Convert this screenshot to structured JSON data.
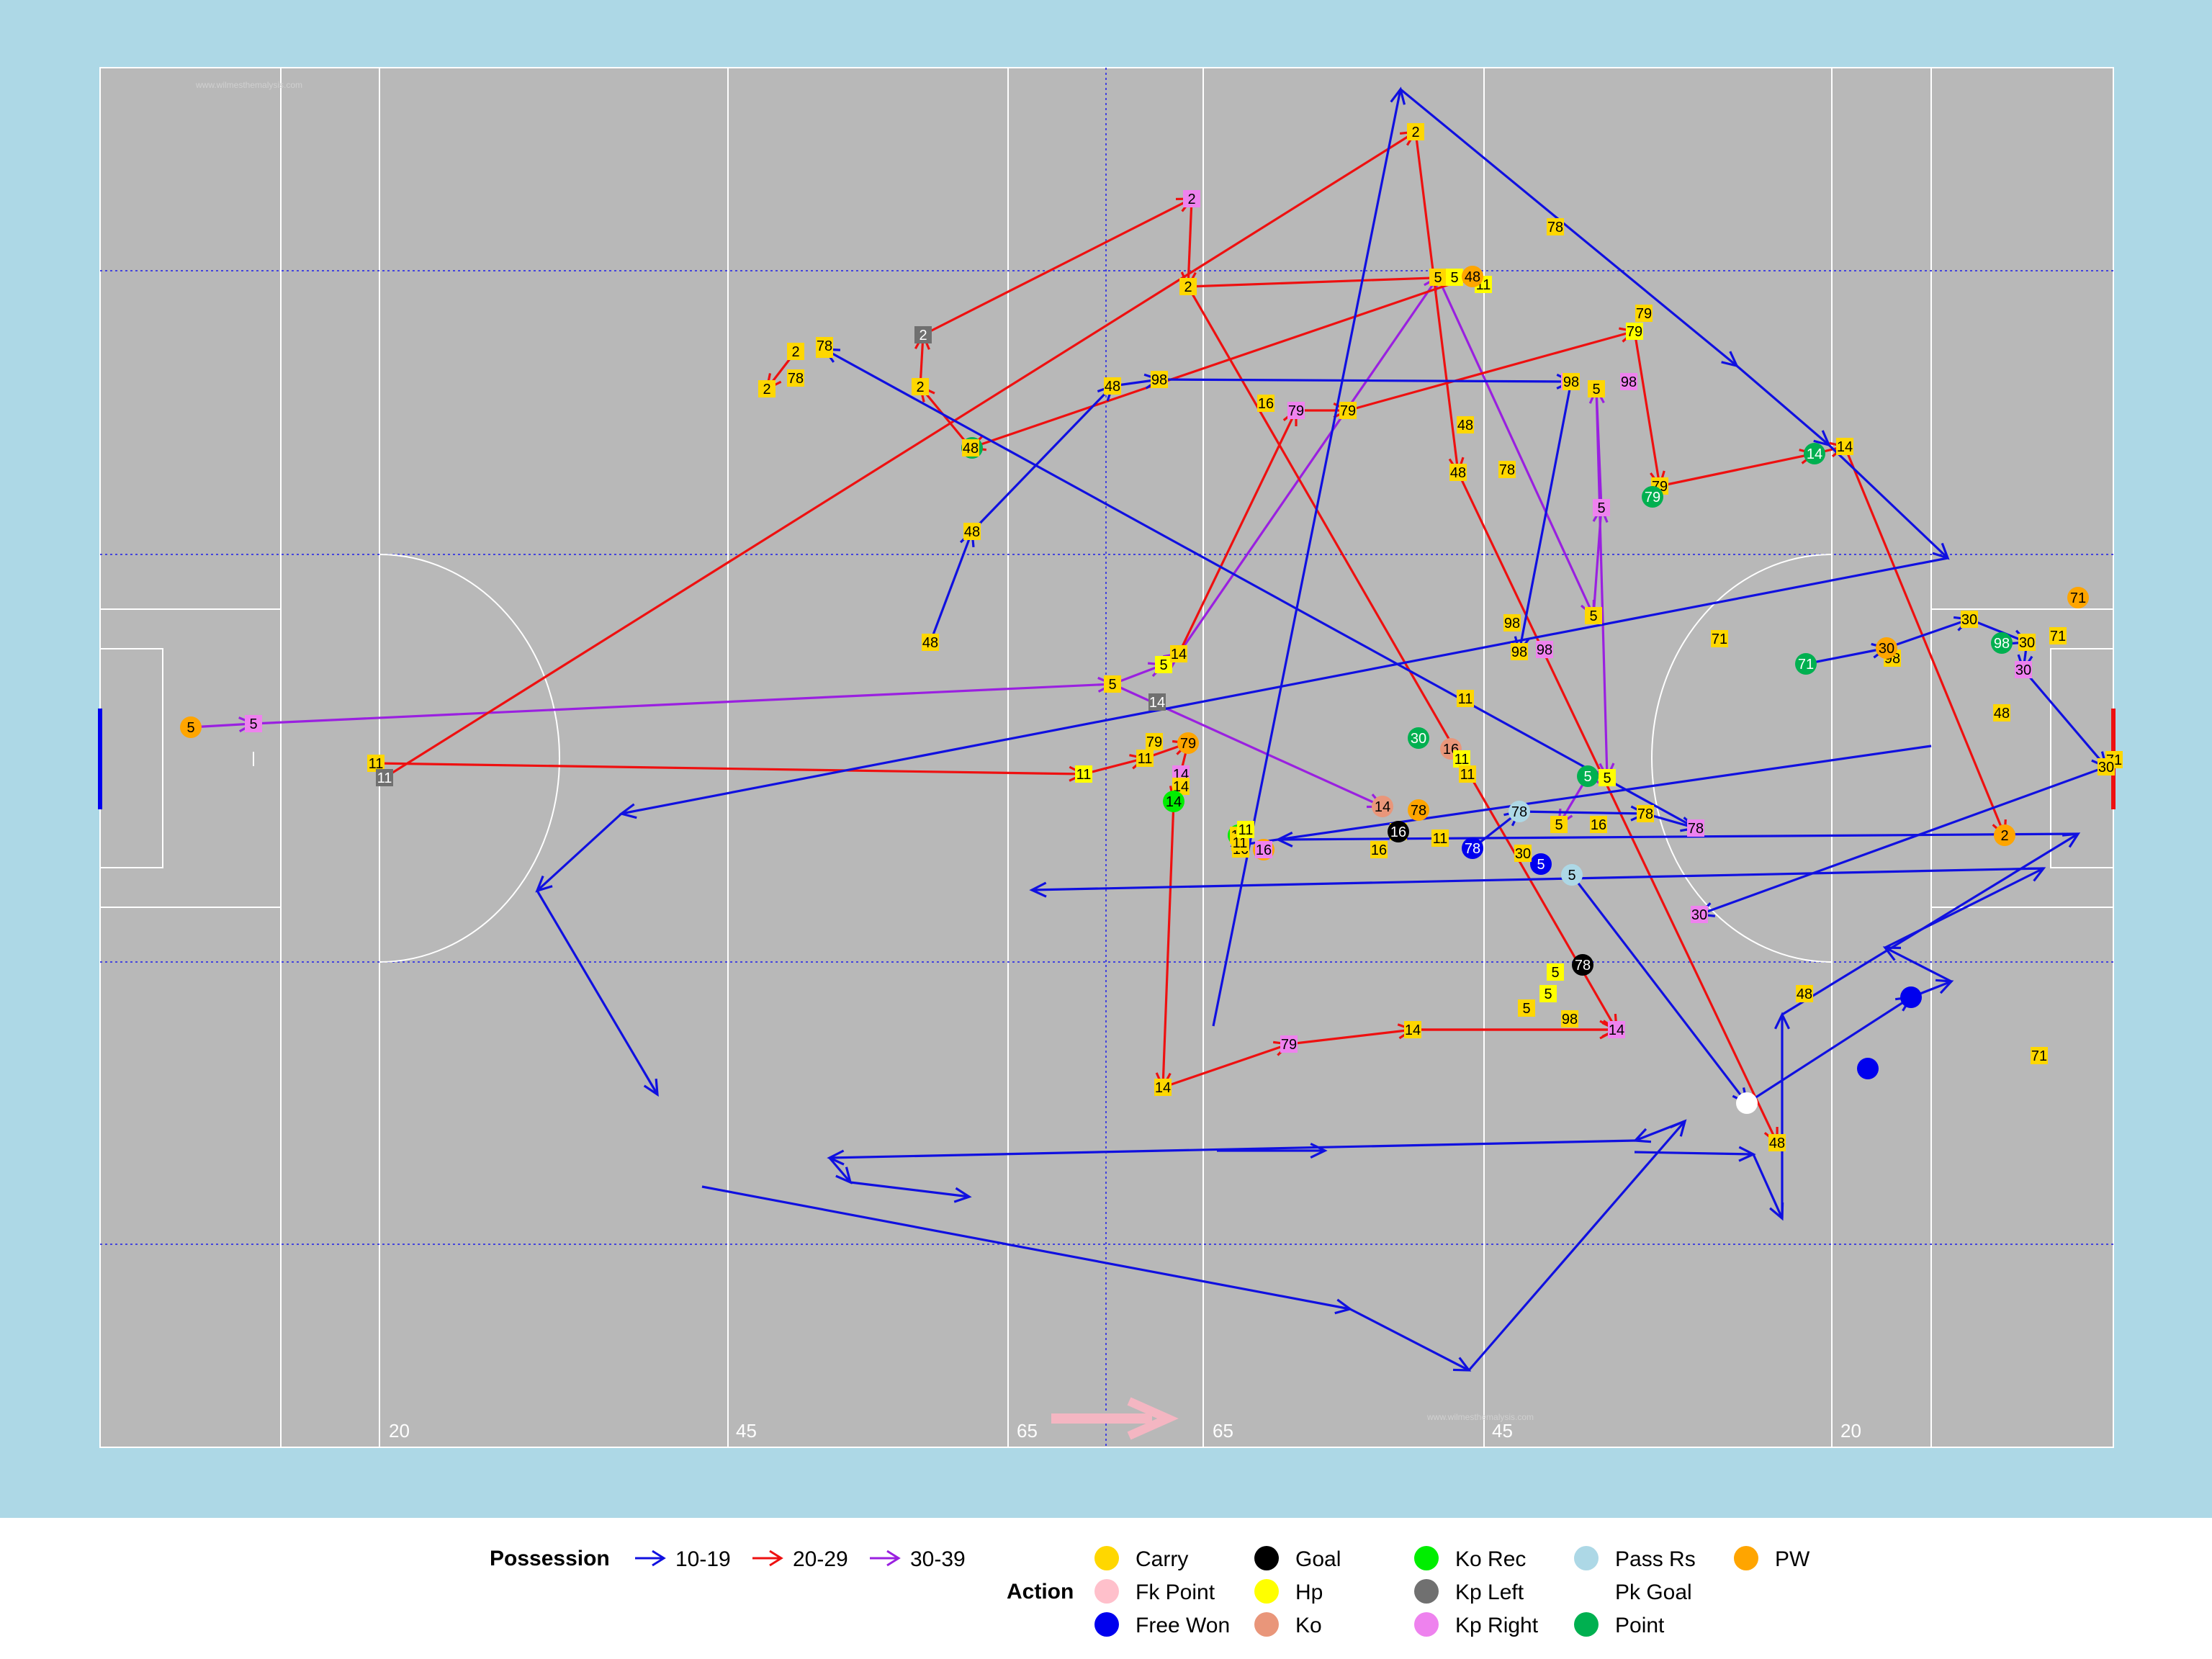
{
  "watermark": "www.wilmesthemalysis.com",
  "distance_labels": [
    "20",
    "45",
    "65",
    "65",
    "45",
    "20"
  ],
  "colors": {
    "panel": "#add8e6",
    "pitch": "#b8b8b8",
    "pitch_lines": "#ffffff",
    "guide_lines": "#4444dd",
    "direction_arrow": "#f4b6c2",
    "possession": {
      "10-19": "#1010e0",
      "20-29": "#ee1010",
      "30-39": "#9a20e0"
    }
  },
  "legend": {
    "possession_title": "Possession",
    "possession": [
      {
        "label": "10-19",
        "key": "10-19"
      },
      {
        "label": "20-29",
        "key": "20-29"
      },
      {
        "label": "30-39",
        "key": "30-39"
      }
    ],
    "action_title": "Action",
    "actions": [
      {
        "label": "Carry",
        "color": "#ffd700"
      },
      {
        "label": "Fk Point",
        "color": "#ffc0cb"
      },
      {
        "label": "Free Won",
        "color": "#0000ee"
      },
      {
        "label": "Goal",
        "color": "#000000"
      },
      {
        "label": "Hp",
        "color": "#ffff00"
      },
      {
        "label": "Ko",
        "color": "#e9967a"
      },
      {
        "label": "Ko Rec",
        "color": "#00ee00"
      },
      {
        "label": "Kp Left",
        "color": "#707070"
      },
      {
        "label": "Kp Right",
        "color": "#ee82ee"
      },
      {
        "label": "Pass Rs",
        "color": "#add8e6"
      },
      {
        "label": "Pk Goal",
        "color": "#ffffff"
      },
      {
        "label": "Point",
        "color": "#00b050"
      },
      {
        "label": "PW",
        "color": "#ffa500"
      }
    ]
  },
  "action_colors": {
    "carry": "#ffd700",
    "fk_point": "#ffc0cb",
    "free_won": "#0000ee",
    "goal": "#000000",
    "hp": "#ffff00",
    "ko": "#e9967a",
    "ko_rec": "#00ee00",
    "kp_left": "#707070",
    "kp_right": "#ee82ee",
    "pass_rs": "#add8e6",
    "pk_goal": "#ffffff",
    "point": "#00b050",
    "pw": "#ffa500"
  },
  "events": [
    {
      "p": "5",
      "a": "pw"
    },
    {
      "p": "5",
      "a": "kp_right"
    },
    {
      "p": "5",
      "a": "carry"
    },
    {
      "p": "5",
      "a": "hp"
    },
    {
      "p": "5",
      "a": "hp"
    },
    {
      "p": "5",
      "a": "kp_right"
    },
    {
      "p": "5",
      "a": "carry"
    },
    {
      "p": "5",
      "a": "hp"
    },
    {
      "p": "5",
      "a": "carry"
    },
    {
      "p": "5",
      "a": "kp_right"
    },
    {
      "p": "5",
      "a": "carry"
    },
    {
      "p": "5",
      "a": "hp"
    },
    {
      "p": "5",
      "a": "point"
    },
    {
      "p": "5",
      "a": "carry"
    },
    {
      "p": "5",
      "a": "hp"
    },
    {
      "p": "5",
      "a": "carry"
    },
    {
      "p": "5",
      "a": "hp"
    },
    {
      "p": "5",
      "a": "free_won"
    },
    {
      "p": "16",
      "a": "ko"
    },
    {
      "p": "14",
      "a": "ko"
    },
    {
      "p": "16",
      "a": "carry"
    },
    {
      "p": "11",
      "a": "pw"
    },
    {
      "p": "16",
      "a": "ko_rec"
    },
    {
      "p": "16",
      "a": "carry"
    },
    {
      "p": "16",
      "a": "hp"
    },
    {
      "p": "16",
      "a": "kp_right"
    },
    {
      "p": "16",
      "a": "carry"
    },
    {
      "p": "16",
      "a": "carry"
    },
    {
      "p": "16",
      "a": "hp"
    },
    {
      "p": "16",
      "a": "carry"
    },
    {
      "p": "16",
      "a": "carry"
    },
    {
      "p": "16",
      "a": "goal"
    },
    {
      "p": "11",
      "a": "carry"
    },
    {
      "p": "11",
      "a": "hp"
    },
    {
      "p": "11",
      "a": "carry"
    },
    {
      "p": "11",
      "a": "carry"
    },
    {
      "p": "11",
      "a": "hp"
    },
    {
      "p": "11",
      "a": "carry"
    },
    {
      "p": "11",
      "a": "carry"
    },
    {
      "p": "11",
      "a": "hp"
    },
    {
      "p": "11",
      "a": "carry"
    },
    {
      "p": "11",
      "a": "kp_left"
    },
    {
      "p": "11",
      "a": "hp"
    },
    {
      "p": "11",
      "a": "carry"
    },
    {
      "p": "79",
      "a": "pw"
    },
    {
      "p": "14",
      "a": "kp_right"
    },
    {
      "p": "14",
      "a": "carry"
    },
    {
      "p": "14",
      "a": "ko_rec"
    },
    {
      "p": "14",
      "a": "carry"
    },
    {
      "p": "79",
      "a": "kp_right"
    },
    {
      "p": "14",
      "a": "carry"
    },
    {
      "p": "14",
      "a": "kp_right"
    },
    {
      "p": "14",
      "a": "carry"
    },
    {
      "p": "14",
      "a": "kp_left"
    },
    {
      "p": "79",
      "a": "carry"
    },
    {
      "p": "79",
      "a": "kp_right"
    },
    {
      "p": "79",
      "a": "carry"
    },
    {
      "p": "79",
      "a": "hp"
    },
    {
      "p": "79",
      "a": "carry"
    },
    {
      "p": "79",
      "a": "carry"
    },
    {
      "p": "79",
      "a": "point"
    },
    {
      "p": "14",
      "a": "point"
    },
    {
      "p": "14",
      "a": "carry"
    },
    {
      "p": "2",
      "a": "pw"
    },
    {
      "p": "2",
      "a": "carry"
    },
    {
      "p": "2",
      "a": "carry"
    },
    {
      "p": "2",
      "a": "kp_left"
    },
    {
      "p": "2",
      "a": "carry"
    },
    {
      "p": "2",
      "a": "kp_right"
    },
    {
      "p": "2",
      "a": "carry"
    },
    {
      "p": "2",
      "a": "point"
    },
    {
      "p": "2",
      "a": "carry"
    },
    {
      "p": "48",
      "a": "pw"
    },
    {
      "p": "48",
      "a": "carry"
    },
    {
      "p": "48",
      "a": "carry"
    },
    {
      "p": "48",
      "a": "carry"
    },
    {
      "p": "48",
      "a": "carry"
    },
    {
      "p": "48",
      "a": "carry"
    },
    {
      "p": "48",
      "a": "carry"
    },
    {
      "p": "48",
      "a": "carry"
    },
    {
      "p": "48",
      "a": "carry"
    },
    {
      "p": "48",
      "a": "carry"
    },
    {
      "p": "98",
      "a": "carry"
    },
    {
      "p": "98",
      "a": "kp_right"
    },
    {
      "p": "98",
      "a": "carry"
    },
    {
      "p": "98",
      "a": "carry"
    },
    {
      "p": "98",
      "a": "kp_right"
    },
    {
      "p": "98",
      "a": "carry"
    },
    {
      "p": "98",
      "a": "carry"
    },
    {
      "p": "98",
      "a": "kp_right"
    },
    {
      "p": "98",
      "a": "carry"
    },
    {
      "p": "98",
      "a": "point"
    },
    {
      "p": "71",
      "a": "pw"
    },
    {
      "p": "71",
      "a": "carry"
    },
    {
      "p": "71",
      "a": "carry"
    },
    {
      "p": "71",
      "a": "carry"
    },
    {
      "p": "71",
      "a": "carry"
    },
    {
      "p": "71",
      "a": "point"
    },
    {
      "p": "30",
      "a": "pw"
    },
    {
      "p": "30",
      "a": "carry"
    },
    {
      "p": "30",
      "a": "carry"
    },
    {
      "p": "30",
      "a": "kp_right"
    },
    {
      "p": "30",
      "a": "carry"
    },
    {
      "p": "30",
      "a": "kp_right"
    },
    {
      "p": "30",
      "a": "carry"
    },
    {
      "p": "30",
      "a": "point"
    },
    {
      "p": "78",
      "a": "pw"
    },
    {
      "p": "78",
      "a": "free_won"
    },
    {
      "p": "78",
      "a": "pass_rs"
    },
    {
      "p": "78",
      "a": "carry"
    },
    {
      "p": "78",
      "a": "kp_right"
    },
    {
      "p": "78",
      "a": "carry"
    },
    {
      "p": "78",
      "a": "carry"
    },
    {
      "p": "78",
      "a": "carry"
    },
    {
      "p": "78",
      "a": "carry"
    },
    {
      "p": "78",
      "a": "carry"
    },
    {
      "p": "78",
      "a": "goal"
    },
    {
      "p": "5",
      "a": "pass_rs"
    },
    {
      "p": "",
      "a": "pk_goal"
    },
    {
      "p": "",
      "a": "free_won"
    },
    {
      "p": "",
      "a": "free_won"
    }
  ]
}
